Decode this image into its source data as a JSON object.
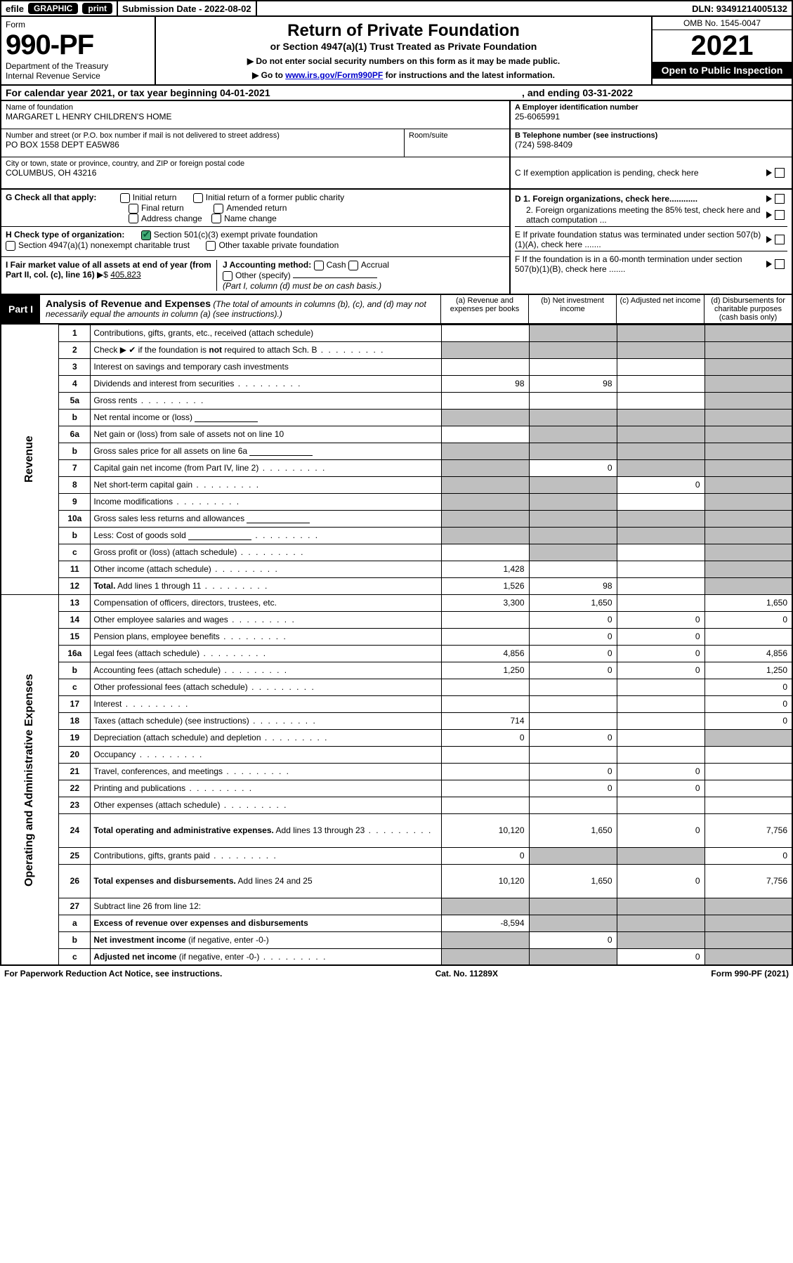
{
  "efile": {
    "label": "efile",
    "graphic": "GRAPHIC",
    "print": "print",
    "sub_label": "Submission Date - 2022-08-02",
    "dln": "DLN: 93491214005132"
  },
  "header": {
    "form_word": "Form",
    "form_number": "990-PF",
    "dept1": "Department of the Treasury",
    "dept2": "Internal Revenue Service",
    "title": "Return of Private Foundation",
    "subtitle": "or Section 4947(a)(1) Trust Treated as Private Foundation",
    "instr1": "▶ Do not enter social security numbers on this form as it may be made public.",
    "instr2a": "▶ Go to ",
    "instr2_link": "www.irs.gov/Form990PF",
    "instr2b": " for instructions and the latest information.",
    "omb": "OMB No. 1545-0047",
    "year": "2021",
    "open": "Open to Public Inspection"
  },
  "cal": {
    "text": "For calendar year 2021, or tax year beginning 04-01-2021",
    "ending": ", and ending 03-31-2022"
  },
  "ident": {
    "name_lbl": "Name of foundation",
    "name_val": "MARGARET L HENRY CHILDREN'S HOME",
    "addr_lbl": "Number and street (or P.O. box number if mail is not delivered to street address)",
    "addr_val": "PO BOX 1558 DEPT EA5W86",
    "room_lbl": "Room/suite",
    "city_lbl": "City or town, state or province, country, and ZIP or foreign postal code",
    "city_val": "COLUMBUS, OH  43216",
    "a_lbl": "A Employer identification number",
    "a_val": "25-6065991",
    "b_lbl": "B Telephone number (see instructions)",
    "b_val": "(724) 598-8409",
    "c_lbl": "C If exemption application is pending, check here",
    "d1_lbl": "D 1. Foreign organizations, check here............",
    "d2_lbl": "2. Foreign organizations meeting the 85% test, check here and attach computation ...",
    "e_lbl": "E  If private foundation status was terminated under section 507(b)(1)(A), check here .......",
    "f_lbl": "F  If the foundation is in a 60-month termination under section 507(b)(1)(B), check here ......."
  },
  "G": {
    "label": "G Check all that apply:",
    "opts": [
      "Initial return",
      "Initial return of a former public charity",
      "Final return",
      "Amended return",
      "Address change",
      "Name change"
    ]
  },
  "H": {
    "label": "H Check type of organization:",
    "opt1": "Section 501(c)(3) exempt private foundation",
    "opt2": "Section 4947(a)(1) nonexempt charitable trust",
    "opt3": "Other taxable private foundation"
  },
  "I": {
    "label": "I Fair market value of all assets at end of year (from Part II, col. (c), line 16)",
    "val": "405,823"
  },
  "J": {
    "label": "J Accounting method:",
    "opts": [
      "Cash",
      "Accrual",
      "Other (specify)"
    ],
    "note": "(Part I, column (d) must be on cash basis.)"
  },
  "part1": {
    "tag": "Part I",
    "title": "Analysis of Revenue and Expenses",
    "note": " (The total of amounts in columns (b), (c), and (d) may not necessarily equal the amounts in column (a) (see instructions).)",
    "cols": {
      "a": "(a)   Revenue and expenses per books",
      "b": "(b)   Net investment income",
      "c": "(c)   Adjusted net income",
      "d": "(d)  Disbursements for charitable purposes (cash basis only)"
    }
  },
  "sections": {
    "rev": "Revenue",
    "exp": "Operating and Administrative Expenses"
  },
  "rows": [
    {
      "n": "1",
      "d": "g",
      "a": "",
      "b": "g",
      "c": "g"
    },
    {
      "n": "2",
      "d": "g",
      "dots": true,
      "a": "g",
      "b": "g",
      "c": "g",
      "bold_not": true
    },
    {
      "n": "3",
      "d": "g",
      "a": "",
      "b": "",
      "c": ""
    },
    {
      "n": "4",
      "d": "g",
      "dots": true,
      "a": "98",
      "b": "98",
      "c": ""
    },
    {
      "n": "5a",
      "d": "g",
      "dots": true,
      "a": "",
      "b": "",
      "c": ""
    },
    {
      "n": "b",
      "d": "g",
      "a": "g",
      "b": "g",
      "c": "g",
      "inline": true
    },
    {
      "n": "6a",
      "d": "g",
      "a": "",
      "b": "g",
      "c": "g"
    },
    {
      "n": "b",
      "d": "g",
      "a": "g",
      "b": "g",
      "c": "g",
      "inline": true
    },
    {
      "n": "7",
      "d": "g",
      "dots": true,
      "a": "g",
      "b": "0",
      "c": "g"
    },
    {
      "n": "8",
      "d": "g",
      "dots": true,
      "a": "g",
      "b": "g",
      "c": "0"
    },
    {
      "n": "9",
      "d": "g",
      "dots": true,
      "a": "g",
      "b": "g",
      "c": ""
    },
    {
      "n": "10a",
      "d": "g",
      "a": "g",
      "b": "g",
      "c": "g",
      "inline": true
    },
    {
      "n": "b",
      "d": "g",
      "dots": true,
      "a": "g",
      "b": "g",
      "c": "g",
      "inline": true
    },
    {
      "n": "c",
      "d": "g",
      "dots": true,
      "a": "",
      "b": "g",
      "c": ""
    },
    {
      "n": "11",
      "d": "g",
      "dots": true,
      "a": "1,428",
      "b": "",
      "c": ""
    },
    {
      "n": "12",
      "d": "g",
      "dots": true,
      "a": "1,526",
      "b": "98",
      "c": "",
      "bold": true
    },
    {
      "n": "13",
      "d": "1,650",
      "a": "3,300",
      "b": "1,650",
      "c": ""
    },
    {
      "n": "14",
      "d": "0",
      "dots": true,
      "a": "",
      "b": "0",
      "c": "0"
    },
    {
      "n": "15",
      "d": "",
      "dots": true,
      "a": "",
      "b": "0",
      "c": "0"
    },
    {
      "n": "16a",
      "d": "4,856",
      "dots": true,
      "a": "4,856",
      "b": "0",
      "c": "0"
    },
    {
      "n": "b",
      "d": "1,250",
      "dots": true,
      "a": "1,250",
      "b": "0",
      "c": "0"
    },
    {
      "n": "c",
      "d": "0",
      "dots": true,
      "a": "",
      "b": "",
      "c": ""
    },
    {
      "n": "17",
      "d": "0",
      "dots": true,
      "a": "",
      "b": "",
      "c": ""
    },
    {
      "n": "18",
      "d": "0",
      "dots": true,
      "a": "714",
      "b": "",
      "c": ""
    },
    {
      "n": "19",
      "d": "g",
      "dots": true,
      "a": "0",
      "b": "0",
      "c": ""
    },
    {
      "n": "20",
      "d": "",
      "dots": true,
      "a": "",
      "b": "",
      "c": ""
    },
    {
      "n": "21",
      "d": "",
      "dots": true,
      "a": "",
      "b": "0",
      "c": "0"
    },
    {
      "n": "22",
      "d": "",
      "dots": true,
      "a": "",
      "b": "0",
      "c": "0"
    },
    {
      "n": "23",
      "d": "",
      "dots": true,
      "a": "",
      "b": "",
      "c": ""
    },
    {
      "n": "24",
      "d": "7,756",
      "dots": true,
      "a": "10,120",
      "b": "1,650",
      "c": "0",
      "bold": true,
      "tall": true
    },
    {
      "n": "25",
      "d": "0",
      "dots": true,
      "a": "0",
      "b": "g",
      "c": "g"
    },
    {
      "n": "26",
      "d": "7,756",
      "a": "10,120",
      "b": "1,650",
      "c": "0",
      "bold": true,
      "tall": true
    },
    {
      "n": "27",
      "d": "g",
      "a": "g",
      "b": "g",
      "c": "g"
    },
    {
      "n": "a",
      "d": "g",
      "a": "-8,594",
      "b": "g",
      "c": "g",
      "bold": true
    },
    {
      "n": "b",
      "d": "g",
      "a": "g",
      "b": "0",
      "c": "g",
      "bold": true
    },
    {
      "n": "c",
      "d": "g",
      "dots": true,
      "a": "g",
      "b": "g",
      "c": "0",
      "bold": true
    }
  ],
  "footer": {
    "left": "For Paperwork Reduction Act Notice, see instructions.",
    "mid": "Cat. No. 11289X",
    "right": "Form 990-PF (2021)"
  }
}
